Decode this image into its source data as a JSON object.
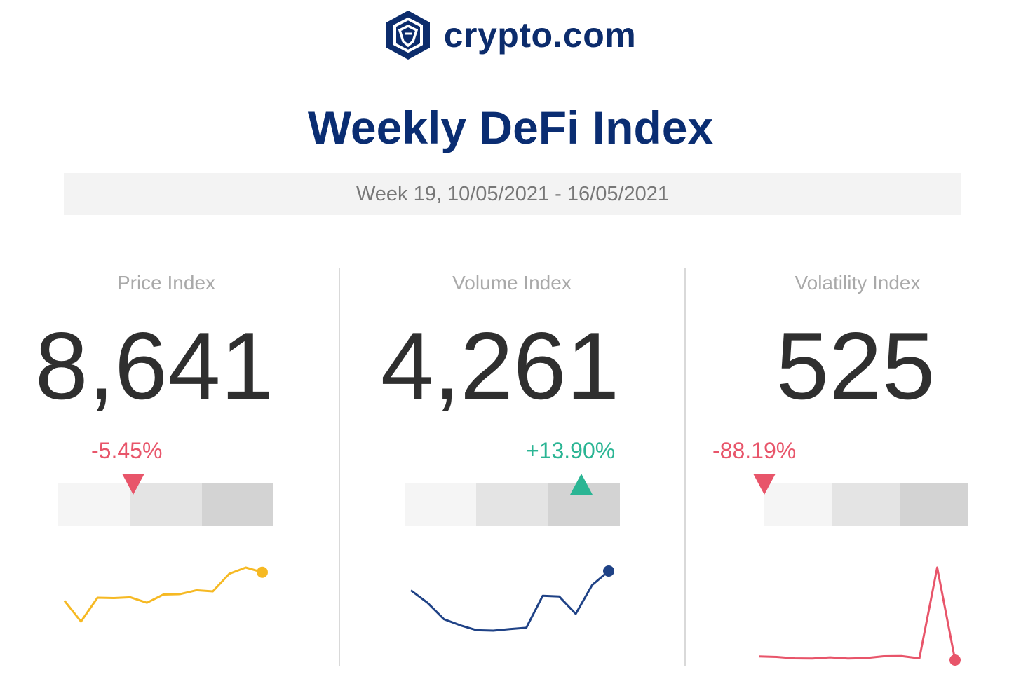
{
  "brand": {
    "name": "crypto.com",
    "color": "#0c2c6c"
  },
  "title": "Weekly DeFi Index",
  "date_range": "Week 19, 10/05/2021 - 16/05/2021",
  "colors": {
    "up": "#2bb594",
    "down": "#e8556a",
    "title": "#0a2d72"
  },
  "chart_data": [
    {
      "type": "line",
      "title": "Price Index",
      "value": "8,641",
      "change": "-5.45%",
      "direction": "down",
      "gauge_position": 0.35,
      "series": [
        {
          "values": [
            8230,
            7700,
            8310,
            8300,
            8320,
            8180,
            8390,
            8400,
            8500,
            8470,
            8920,
            9080,
            8960
          ]
        }
      ],
      "color": "#f6b923"
    },
    {
      "type": "line",
      "title": "Volume Index",
      "value": "4,261",
      "change": "+13.90%",
      "direction": "up",
      "gauge_position": 0.82,
      "series": [
        {
          "values": [
            3550,
            3250,
            2850,
            2700,
            2580,
            2570,
            2610,
            2640,
            3420,
            3400,
            2980,
            3680,
            4020
          ]
        }
      ],
      "color": "#1f4286"
    },
    {
      "type": "line",
      "title": "Volatility Index",
      "value": "525",
      "change": "-88.19%",
      "direction": "down",
      "gauge_position": 0.0,
      "series": [
        {
          "values": [
            680,
            660,
            600,
            590,
            640,
            590,
            610,
            690,
            695,
            600,
            4450,
            525
          ]
        }
      ],
      "color": "#e8556a"
    }
  ]
}
